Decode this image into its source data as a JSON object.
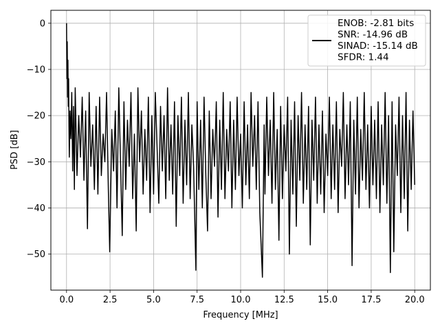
{
  "chart_data": {
    "type": "line",
    "title": "",
    "xlabel": "Frequency [MHz]",
    "ylabel": "PSD [dB]",
    "xlim": [
      -0.9,
      20.9
    ],
    "ylim": [
      -57.8,
      2.8
    ],
    "xticks": [
      0.0,
      2.5,
      5.0,
      7.5,
      10.0,
      12.5,
      15.0,
      17.5,
      20.0
    ],
    "xtick_labels": [
      "0.0",
      "2.5",
      "5.0",
      "7.5",
      "10.0",
      "12.5",
      "15.0",
      "17.5",
      "20.0"
    ],
    "yticks": [
      0,
      -10,
      -20,
      -30,
      -40,
      -50
    ],
    "ytick_labels": [
      "0",
      "−10",
      "−20",
      "−30",
      "−40",
      "−50"
    ],
    "grid": true,
    "legend_placement": "top-right",
    "series": [
      {
        "name": "ENOB: -2.81 bits\nSNR: -14.96 dB\nSINAD: -15.14 dB\nSFDR: 1.44",
        "color": "#000000",
        "x": [
          0.0,
          0.02,
          0.04,
          0.06,
          0.08,
          0.1,
          0.12,
          0.14,
          0.16,
          0.2,
          0.25,
          0.3,
          0.35,
          0.4,
          0.45,
          0.5,
          0.6,
          0.7,
          0.8,
          0.9,
          1.0,
          1.1,
          1.2,
          1.3,
          1.4,
          1.5,
          1.6,
          1.7,
          1.8,
          1.9,
          2.0,
          2.1,
          2.2,
          2.3,
          2.4,
          2.48,
          2.6,
          2.7,
          2.8,
          2.9,
          3.0,
          3.1,
          3.2,
          3.3,
          3.4,
          3.5,
          3.6,
          3.7,
          3.8,
          3.9,
          4.0,
          4.1,
          4.2,
          4.3,
          4.4,
          4.5,
          4.6,
          4.7,
          4.8,
          4.9,
          5.0,
          5.1,
          5.2,
          5.3,
          5.4,
          5.5,
          5.6,
          5.7,
          5.8,
          5.9,
          6.0,
          6.1,
          6.2,
          6.3,
          6.4,
          6.5,
          6.6,
          6.7,
          6.8,
          6.9,
          7.0,
          7.1,
          7.2,
          7.3,
          7.43,
          7.5,
          7.6,
          7.7,
          7.8,
          7.9,
          8.0,
          8.1,
          8.2,
          8.3,
          8.4,
          8.5,
          8.6,
          8.7,
          8.8,
          8.9,
          9.0,
          9.1,
          9.2,
          9.3,
          9.4,
          9.5,
          9.6,
          9.7,
          9.8,
          9.9,
          10.0,
          10.1,
          10.2,
          10.3,
          10.4,
          10.5,
          10.6,
          10.7,
          10.8,
          10.9,
          11.0,
          11.1,
          11.25,
          11.35,
          11.4,
          11.5,
          11.6,
          11.7,
          11.8,
          11.9,
          12.0,
          12.1,
          12.2,
          12.3,
          12.4,
          12.5,
          12.6,
          12.7,
          12.8,
          12.9,
          13.0,
          13.1,
          13.2,
          13.3,
          13.4,
          13.5,
          13.6,
          13.7,
          13.8,
          13.9,
          14.0,
          14.1,
          14.2,
          14.3,
          14.4,
          14.5,
          14.6,
          14.7,
          14.8,
          14.9,
          15.0,
          15.1,
          15.2,
          15.3,
          15.4,
          15.5,
          15.6,
          15.7,
          15.8,
          15.9,
          16.0,
          16.1,
          16.2,
          16.3,
          16.4,
          16.5,
          16.6,
          16.7,
          16.8,
          16.9,
          17.0,
          17.1,
          17.2,
          17.3,
          17.4,
          17.5,
          17.6,
          17.7,
          17.8,
          17.9,
          18.0,
          18.1,
          18.2,
          18.3,
          18.4,
          18.5,
          18.6,
          18.7,
          18.8,
          18.9,
          19.0,
          19.1,
          19.2,
          19.3,
          19.4,
          19.5,
          19.6,
          19.7,
          19.8,
          19.9,
          20.0
        ],
        "y": [
          0.0,
          -12.0,
          -4.0,
          -16.0,
          -8.0,
          -18.0,
          -12.0,
          -22.0,
          -29.0,
          -19.0,
          -25.0,
          -15.0,
          -32.0,
          -18.0,
          -36.0,
          -14.0,
          -33.0,
          -20.0,
          -29.0,
          -16.0,
          -34.0,
          -19.0,
          -44.5,
          -15.0,
          -31.0,
          -22.0,
          -36.0,
          -18.0,
          -37.0,
          -16.0,
          -33.0,
          -24.0,
          -30.0,
          -15.0,
          -36.0,
          -49.5,
          -23.0,
          -32.0,
          -19.0,
          -40.0,
          -14.0,
          -30.0,
          -46.0,
          -17.0,
          -36.0,
          -21.0,
          -31.0,
          -15.0,
          -38.0,
          -24.0,
          -45.0,
          -14.0,
          -30.0,
          -19.0,
          -37.0,
          -23.0,
          -34.0,
          -16.0,
          -41.0,
          -20.0,
          -37.0,
          -15.0,
          -27.0,
          -39.0,
          -18.0,
          -32.0,
          -20.0,
          -38.0,
          -14.0,
          -34.0,
          -22.0,
          -37.0,
          -17.0,
          -44.0,
          -20.0,
          -33.0,
          -16.0,
          -39.0,
          -21.0,
          -35.0,
          -15.0,
          -38.0,
          -22.0,
          -31.0,
          -53.5,
          -17.0,
          -36.0,
          -21.0,
          -40.0,
          -16.0,
          -33.0,
          -45.0,
          -19.0,
          -38.0,
          -23.0,
          -31.0,
          -17.0,
          -42.0,
          -21.0,
          -36.0,
          -15.0,
          -38.0,
          -23.0,
          -32.0,
          -17.0,
          -40.0,
          -21.0,
          -36.0,
          -16.0,
          -33.0,
          -24.0,
          -40.0,
          -17.0,
          -35.0,
          -22.0,
          -38.0,
          -15.0,
          -31.0,
          -20.0,
          -36.0,
          -17.0,
          -41.0,
          -55.0,
          -22.0,
          -37.0,
          -16.0,
          -33.0,
          -21.0,
          -39.0,
          -15.0,
          -36.0,
          -23.0,
          -47.0,
          -18.0,
          -38.0,
          -22.0,
          -32.0,
          -16.0,
          -50.0,
          -21.0,
          -37.0,
          -17.0,
          -44.0,
          -20.0,
          -34.0,
          -15.0,
          -39.0,
          -22.0,
          -36.0,
          -18.0,
          -48.0,
          -21.0,
          -34.0,
          -16.0,
          -39.0,
          -22.0,
          -37.0,
          -19.0,
          -41.0,
          -24.0,
          -33.0,
          -16.0,
          -38.0,
          -22.0,
          -36.0,
          -17.0,
          -41.0,
          -23.0,
          -31.0,
          -15.0,
          -38.0,
          -22.0,
          -35.0,
          -17.0,
          -52.5,
          -21.0,
          -37.0,
          -16.0,
          -40.0,
          -23.0,
          -34.0,
          -15.0,
          -36.0,
          -22.0,
          -40.0,
          -18.0,
          -35.0,
          -21.0,
          -38.0,
          -17.0,
          -41.0,
          -22.0,
          -35.0,
          -15.0,
          -39.0,
          -20.0,
          -54.0,
          -17.0,
          -49.5,
          -22.0,
          -33.0,
          -16.0,
          -41.0,
          -20.0,
          -38.0,
          -15.0,
          -45.0,
          -21.0,
          -36.0,
          -19.0,
          -35.0
        ]
      }
    ]
  }
}
